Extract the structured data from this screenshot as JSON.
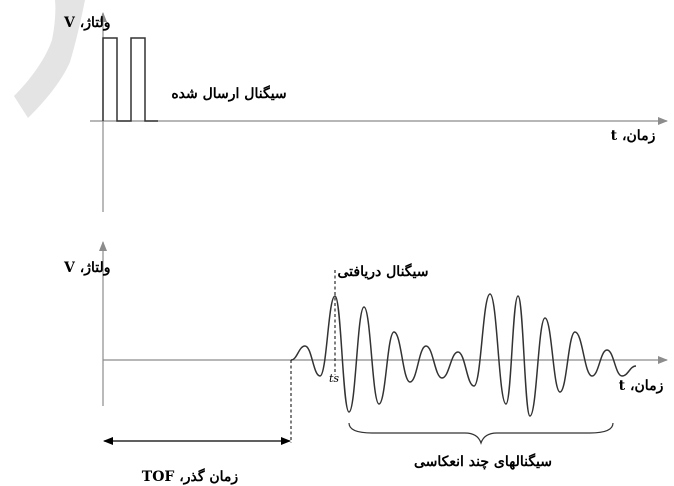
{
  "top_panel": {
    "y_axis_label": "ولتاژ، V",
    "x_axis_label": "زمان، t",
    "signal_label": "سیگنال ارسال شده"
  },
  "bottom_panel": {
    "y_axis_label": "ولتاژ، V",
    "x_axis_label": "زمان، t",
    "received_label": "سیگنال دریافتی",
    "ts_label": "ts",
    "reflections_label": "سیگنالهای چند انعکاسی",
    "tof_label": "زمان گذر، TOF"
  },
  "colors": {
    "axis": "#8c8c8c",
    "signal": "#333333",
    "text": "#000000",
    "watermark": "#e4e4e4"
  }
}
